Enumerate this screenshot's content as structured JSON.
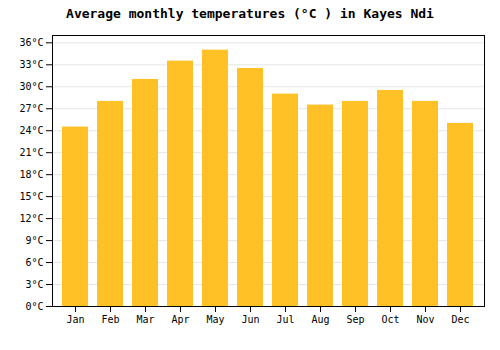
{
  "chart_data": {
    "type": "bar",
    "title": "Average monthly temperatures (°C ) in Kayes Ndi",
    "categories": [
      "Jan",
      "Feb",
      "Mar",
      "Apr",
      "May",
      "Jun",
      "Jul",
      "Aug",
      "Sep",
      "Oct",
      "Nov",
      "Dec"
    ],
    "values": [
      24.5,
      28.0,
      31.0,
      33.5,
      35.0,
      32.5,
      29.0,
      27.5,
      28.0,
      29.5,
      28.0,
      25.0
    ],
    "color": "#FFC125",
    "ylim": [
      0,
      37
    ],
    "yticks": [
      {
        "value": 0,
        "label": "0°C"
      },
      {
        "value": 3,
        "label": "3°C"
      },
      {
        "value": 6,
        "label": "6°C"
      },
      {
        "value": 9,
        "label": "9°C"
      },
      {
        "value": 12,
        "label": "12°C"
      },
      {
        "value": 15,
        "label": "15°C"
      },
      {
        "value": 18,
        "label": "18°C"
      },
      {
        "value": 21,
        "label": "21°C"
      },
      {
        "value": 24,
        "label": "24°C"
      },
      {
        "value": 27,
        "label": "27°C"
      },
      {
        "value": 30,
        "label": "30°C"
      },
      {
        "value": 33,
        "label": "33°C"
      },
      {
        "value": 36,
        "label": "36°C"
      }
    ],
    "grid": true
  }
}
